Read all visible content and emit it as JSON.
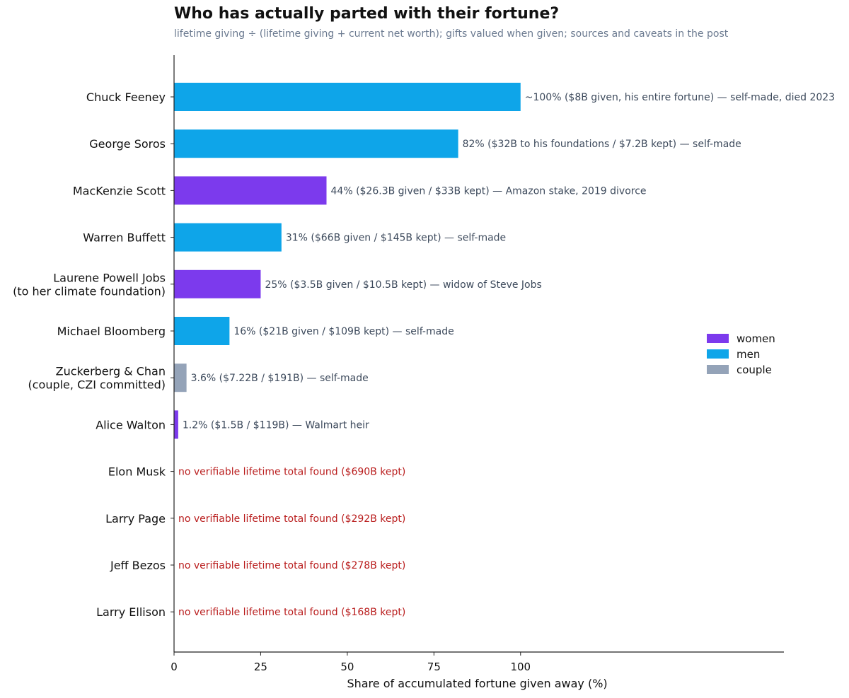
{
  "chart_data": {
    "type": "bar",
    "orientation": "horizontal",
    "title": "Who has actually parted with their fortune?",
    "subtitle": "lifetime giving ÷ (lifetime giving + current net worth); gifts valued when given; sources and caveats in the post",
    "xlabel": "Share of accumulated fortune given away (%)",
    "ylabel": "",
    "xlim": [
      0,
      176
    ],
    "xticks": [
      0,
      25,
      50,
      75,
      100
    ],
    "grid": false,
    "legend_position": "right",
    "colors": {
      "women": "#7c3aed",
      "men": "#0ea5e9",
      "couple": "#94a3b8",
      "label": "#3d4a5c",
      "nodata": "#b91c1c"
    },
    "legend": [
      {
        "key": "women",
        "label": "women"
      },
      {
        "key": "men",
        "label": "men"
      },
      {
        "key": "couple",
        "label": "couple"
      }
    ],
    "rows": [
      {
        "name": [
          "Chuck Feeney"
        ],
        "value": 100,
        "group": "men",
        "label": "~100%  ($8B given, his entire fortune) — self-made, died 2023"
      },
      {
        "name": [
          "George Soros"
        ],
        "value": 82,
        "group": "men",
        "label": "82%  ($32B to his foundations / $7.2B kept) — self-made"
      },
      {
        "name": [
          "MacKenzie Scott"
        ],
        "value": 44,
        "group": "women",
        "label": "44%  ($26.3B given / $33B kept) — Amazon stake, 2019 divorce"
      },
      {
        "name": [
          "Warren Buffett"
        ],
        "value": 31,
        "group": "men",
        "label": "31%  ($66B given / $145B kept) — self-made"
      },
      {
        "name": [
          "Laurene Powell Jobs",
          "(to her climate foundation)"
        ],
        "value": 25,
        "group": "women",
        "label": "25%  ($3.5B given / $10.5B kept) — widow of Steve Jobs"
      },
      {
        "name": [
          "Michael Bloomberg"
        ],
        "value": 16,
        "group": "men",
        "label": "16%  ($21B given / $109B kept) — self-made"
      },
      {
        "name": [
          "Zuckerberg & Chan",
          "(couple, CZI committed)"
        ],
        "value": 3.6,
        "group": "couple",
        "label": "3.6%  ($7.22B / $191B) — self-made"
      },
      {
        "name": [
          "Alice Walton"
        ],
        "value": 1.2,
        "group": "women",
        "label": "1.2%  ($1.5B / $119B) — Walmart heir"
      },
      {
        "name": [
          "Elon Musk"
        ],
        "value": null,
        "group": null,
        "label": "no verifiable lifetime total found  ($690B kept)"
      },
      {
        "name": [
          "Larry Page"
        ],
        "value": null,
        "group": null,
        "label": "no verifiable lifetime total found  ($292B kept)"
      },
      {
        "name": [
          "Jeff Bezos"
        ],
        "value": null,
        "group": null,
        "label": "no verifiable lifetime total found  ($278B kept)"
      },
      {
        "name": [
          "Larry Ellison"
        ],
        "value": null,
        "group": null,
        "label": "no verifiable lifetime total found  ($168B kept)"
      }
    ]
  }
}
